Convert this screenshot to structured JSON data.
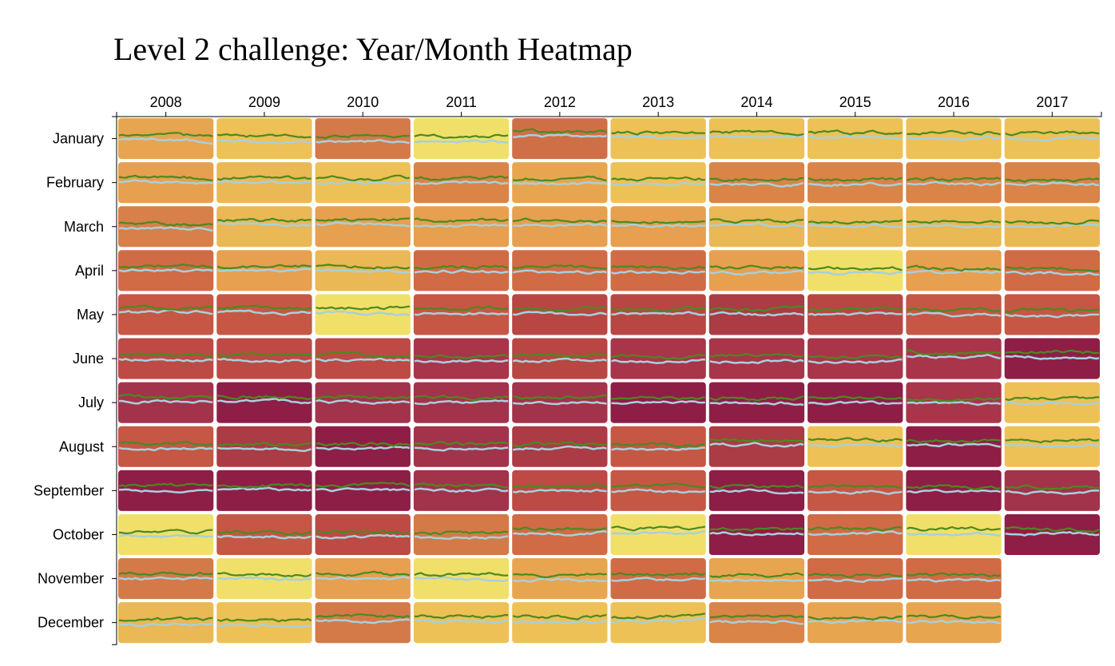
{
  "chart_data": {
    "type": "heatmap",
    "title": "Level 2 challenge: Year/Month Heatmap",
    "x_ticks": [
      "2008",
      "2009",
      "2010",
      "2011",
      "2012",
      "2013",
      "2014",
      "2015",
      "2016",
      "2017"
    ],
    "y_ticks": [
      "January",
      "February",
      "March",
      "April",
      "May",
      "June",
      "July",
      "August",
      "September",
      "October",
      "November",
      "December"
    ],
    "cell_colors": [
      [
        "#E8A550",
        "#EDC155",
        "#D47A48",
        "#F0E06A",
        "#CF6F48",
        "#EDC155",
        "#EDC155",
        "#EDC155",
        "#EDC155",
        "#EDC155"
      ],
      [
        "#E6A04F",
        "#EAB854",
        "#EDC155",
        "#DA8447",
        "#E8A550",
        "#EDC155",
        "#DA8447",
        "#DA8447",
        "#DA8447",
        "#DA8447"
      ],
      [
        "#D7804A",
        "#EAB854",
        "#E6A04F",
        "#E6A04F",
        "#E6A04F",
        "#E6A04F",
        "#EAB854",
        "#EAB854",
        "#EAB854",
        "#EAB854"
      ],
      [
        "#D06B45",
        "#E6A04F",
        "#EAB854",
        "#D06B45",
        "#D06B45",
        "#D06B45",
        "#E6A04F",
        "#F0E06A",
        "#E6A04F",
        "#D06B45"
      ],
      [
        "#C55744",
        "#C55744",
        "#F0E06A",
        "#C55744",
        "#B84643",
        "#B84643",
        "#AB3B44",
        "#B84643",
        "#C55744",
        "#C55744"
      ],
      [
        "#BD4A44",
        "#BD4A44",
        "#BD4A44",
        "#A8354A",
        "#B84643",
        "#A8354A",
        "#A8354A",
        "#A8354A",
        "#A8354A",
        "#8E1E46"
      ],
      [
        "#A2334A",
        "#8E1E46",
        "#A2334A",
        "#A2334A",
        "#A2334A",
        "#8E1E46",
        "#8E1E46",
        "#8E1E46",
        "#A8354A",
        "#EDC155"
      ],
      [
        "#C55744",
        "#AB3B44",
        "#8E1E46",
        "#A2334A",
        "#AB3B44",
        "#C55744",
        "#AB3B44",
        "#EDC155",
        "#8E1E46",
        "#EDC155"
      ],
      [
        "#8E1E46",
        "#8E1E46",
        "#8E1E46",
        "#A2334A",
        "#BD4A44",
        "#C55744",
        "#8E1E46",
        "#C55744",
        "#8E1E46",
        "#A2334A"
      ],
      [
        "#F0E06A",
        "#C55744",
        "#BD4A44",
        "#D47A48",
        "#D06B45",
        "#F0E06A",
        "#8E1E46",
        "#D06B45",
        "#F0E06A",
        "#8E1E46"
      ],
      [
        "#D47A48",
        "#F0E06A",
        "#E6A04F",
        "#F0E06A",
        "#E8A550",
        "#D06B45",
        "#E8A550",
        "#D06B45",
        "#D06B45",
        ""
      ],
      [
        "#EAB854",
        "#EDC155",
        "#D47A48",
        "#EDC155",
        "#EDC155",
        "#EDC155",
        "#DA8447",
        "#E8A550",
        "#E8A550",
        ""
      ]
    ],
    "series": [
      {
        "color": "#4A8A1F"
      },
      {
        "color": "#A8D0DC"
      }
    ],
    "grid": false,
    "legend": "none"
  }
}
